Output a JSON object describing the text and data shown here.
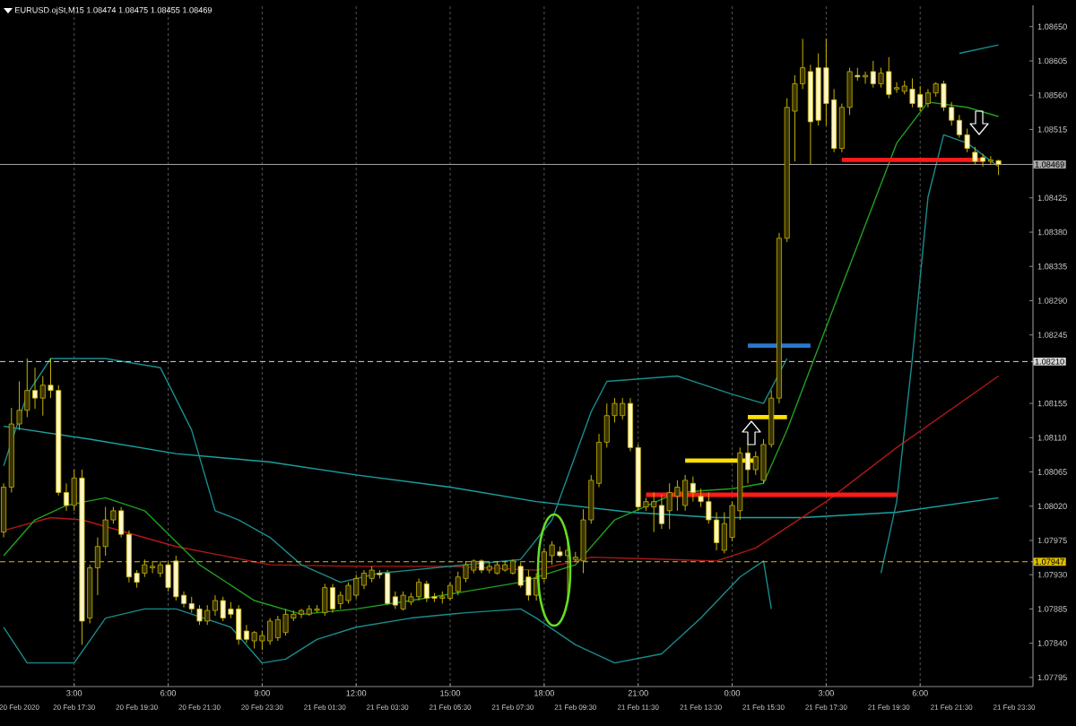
{
  "chart_data": {
    "type": "candlestick",
    "title": "EURUSD.ojSt,M15  1.08474 1.08475 1.08455 1.08469",
    "color": "#c8b400",
    "x": [
      "2020-02-20T15:15",
      "2020-02-20T15:30",
      "2020-02-20T15:45",
      "2020-02-20T16:00",
      "2020-02-20T16:15",
      "2020-02-20T16:30",
      "2020-02-20T16:45",
      "2020-02-20T17:00",
      "2020-02-20T17:15",
      "2020-02-20T17:30",
      "2020-02-20T17:45",
      "2020-02-20T18:00",
      "2020-02-20T18:15",
      "2020-02-20T18:30",
      "2020-02-20T18:45",
      "2020-02-20T19:00",
      "2020-02-20T19:15",
      "2020-02-20T19:30",
      "2020-02-20T19:45",
      "2020-02-20T20:00",
      "2020-02-20T20:15",
      "2020-02-20T20:30",
      "2020-02-20T20:45",
      "2020-02-20T21:00",
      "2020-02-20T21:15",
      "2020-02-20T21:30",
      "2020-02-20T21:45",
      "2020-02-20T22:00",
      "2020-02-20T22:15",
      "2020-02-20T22:30",
      "2020-02-20T22:45",
      "2020-02-20T23:00",
      "2020-02-20T23:15",
      "2020-02-20T23:30",
      "2020-02-20T23:45",
      "2020-02-21T00:00",
      "2020-02-21T00:15",
      "2020-02-21T00:30",
      "2020-02-21T00:45",
      "2020-02-21T01:00",
      "2020-02-21T01:15",
      "2020-02-21T01:30",
      "2020-02-21T01:45",
      "2020-02-21T02:00",
      "2020-02-21T02:15",
      "2020-02-21T02:30",
      "2020-02-21T02:45",
      "2020-02-21T03:00",
      "2020-02-21T03:15",
      "2020-02-21T03:30",
      "2020-02-21T03:45",
      "2020-02-21T04:00",
      "2020-02-21T04:15",
      "2020-02-21T04:30",
      "2020-02-21T04:45",
      "2020-02-21T05:00",
      "2020-02-21T05:15",
      "2020-02-21T05:30",
      "2020-02-21T05:45",
      "2020-02-21T06:00",
      "2020-02-21T06:15",
      "2020-02-21T06:30",
      "2020-02-21T06:45",
      "2020-02-21T07:00",
      "2020-02-21T07:15",
      "2020-02-21T07:30",
      "2020-02-21T07:45",
      "2020-02-21T08:00",
      "2020-02-21T08:15",
      "2020-02-21T08:30",
      "2020-02-21T08:45",
      "2020-02-21T09:00",
      "2020-02-21T09:15",
      "2020-02-21T09:30",
      "2020-02-21T09:45",
      "2020-02-21T10:00",
      "2020-02-21T10:15",
      "2020-02-21T10:30",
      "2020-02-21T10:45",
      "2020-02-21T11:00",
      "2020-02-21T11:15",
      "2020-02-21T11:30",
      "2020-02-21T11:45",
      "2020-02-21T12:00",
      "2020-02-21T12:15",
      "2020-02-21T12:30",
      "2020-02-21T12:45",
      "2020-02-21T13:00",
      "2020-02-21T13:15",
      "2020-02-21T13:30",
      "2020-02-21T13:45",
      "2020-02-21T14:00",
      "2020-02-21T14:15",
      "2020-02-21T14:30",
      "2020-02-21T14:45",
      "2020-02-21T15:00",
      "2020-02-21T15:15",
      "2020-02-21T15:30",
      "2020-02-21T15:45",
      "2020-02-21T16:00",
      "2020-02-21T16:15",
      "2020-02-21T16:30",
      "2020-02-21T16:45",
      "2020-02-21T17:00",
      "2020-02-21T17:15",
      "2020-02-21T17:30",
      "2020-02-21T17:45",
      "2020-02-21T18:00",
      "2020-02-21T18:15",
      "2020-02-21T18:30",
      "2020-02-21T18:45",
      "2020-02-21T19:00",
      "2020-02-21T19:15",
      "2020-02-21T19:30",
      "2020-02-21T19:45",
      "2020-02-21T20:00",
      "2020-02-21T20:15",
      "2020-02-21T20:30",
      "2020-02-21T20:45",
      "2020-02-21T21:00",
      "2020-02-21T21:15",
      "2020-02-21T21:30",
      "2020-02-21T21:45",
      "2020-02-21T22:00",
      "2020-02-21T22:15",
      "2020-02-21T22:30",
      "2020-02-21T22:45",
      "2020-02-21T23:00"
    ],
    "ohlc": [
      [
        1.07986,
        1.0805,
        1.07979,
        1.08045
      ],
      [
        1.08045,
        1.08149,
        1.08038,
        1.08128
      ],
      [
        1.08128,
        1.08184,
        1.0812,
        1.08146
      ],
      [
        1.08146,
        1.08214,
        1.08137,
        1.08172
      ],
      [
        1.08172,
        1.08202,
        1.08148,
        1.08162
      ],
      [
        1.08162,
        1.08191,
        1.08139,
        1.08179
      ],
      [
        1.08179,
        1.08214,
        1.08162,
        1.08172
      ],
      [
        1.08172,
        1.08179,
        1.08034,
        1.08038
      ],
      [
        1.08038,
        1.0805,
        1.08014,
        1.08021
      ],
      [
        1.08021,
        1.08068,
        1.08014,
        1.08057
      ],
      [
        1.08057,
        1.08068,
        1.07838,
        1.07869
      ],
      [
        1.07873,
        1.07943,
        1.07866,
        1.07939
      ],
      [
        1.07939,
        1.07979,
        1.07903,
        1.07967
      ],
      [
        1.07967,
        1.08019,
        1.07955,
        1.08002
      ],
      [
        1.08002,
        1.08019,
        1.07997,
        1.08014
      ],
      [
        1.08014,
        1.08019,
        1.07979,
        1.07983
      ],
      [
        1.07983,
        1.07988,
        1.0792,
        1.07927
      ],
      [
        1.07932,
        1.07936,
        1.07913,
        1.0792
      ],
      [
        1.07932,
        1.0795,
        1.07927,
        1.07943
      ],
      [
        1.07939,
        1.07948,
        1.07932,
        1.07941
      ],
      [
        1.07932,
        1.07948,
        1.07927,
        1.07943
      ],
      [
        1.07943,
        1.07948,
        1.07908,
        1.07913
      ],
      [
        1.07948,
        1.07955,
        1.07896,
        1.07901
      ],
      [
        1.07903,
        1.07908,
        1.07887,
        1.07892
      ],
      [
        1.07892,
        1.07901,
        1.0788,
        1.07885
      ],
      [
        1.07885,
        1.0789,
        1.07864,
        1.07869
      ],
      [
        1.07869,
        1.0789,
        1.07864,
        1.07883
      ],
      [
        1.07883,
        1.07903,
        1.07876,
        1.07896
      ],
      [
        1.07896,
        1.07901,
        1.07869,
        1.07873
      ],
      [
        1.07885,
        1.07894,
        1.07873,
        1.07878
      ],
      [
        1.07885,
        1.0789,
        1.07838,
        1.07845
      ],
      [
        1.07856,
        1.07864,
        1.0784,
        1.07845
      ],
      [
        1.07843,
        1.07856,
        1.07833,
        1.07854
      ],
      [
        1.07843,
        1.07856,
        1.07831,
        1.0785
      ],
      [
        1.07843,
        1.07873,
        1.07838,
        1.07869
      ],
      [
        1.07847,
        1.07876,
        1.07843,
        1.07871
      ],
      [
        1.07854,
        1.07885,
        1.0785,
        1.07878
      ],
      [
        1.07873,
        1.07883,
        1.07869,
        1.07878
      ],
      [
        1.07878,
        1.07885,
        1.07873,
        1.07883
      ],
      [
        1.07878,
        1.0789,
        1.07876,
        1.07885
      ],
      [
        1.07883,
        1.0789,
        1.0788,
        1.07885
      ],
      [
        1.0788,
        1.07918,
        1.07876,
        1.07913
      ],
      [
        1.07913,
        1.07918,
        1.0788,
        1.07885
      ],
      [
        1.07892,
        1.07908,
        1.07885,
        1.07903
      ],
      [
        1.07896,
        1.0792,
        1.07892,
        1.07916
      ],
      [
        1.07903,
        1.0793,
        1.07899,
        1.07925
      ],
      [
        1.07916,
        1.07936,
        1.07911,
        1.07932
      ],
      [
        1.07925,
        1.07941,
        1.0792,
        1.07936
      ],
      [
        1.07932,
        1.07936,
        1.07925,
        1.0793
      ],
      [
        1.07932,
        1.07936,
        1.0789,
        1.07892
      ],
      [
        1.07901,
        1.07908,
        1.07885,
        1.0789
      ],
      [
        1.07885,
        1.07908,
        1.07883,
        1.07903
      ],
      [
        1.07894,
        1.07906,
        1.0789,
        1.07901
      ],
      [
        1.07901,
        1.07925,
        1.07896,
        1.0792
      ],
      [
        1.07918,
        1.07922,
        1.07894,
        1.07899
      ],
      [
        1.07901,
        1.07906,
        1.07894,
        1.07899
      ],
      [
        1.07899,
        1.07908,
        1.07892,
        1.07901
      ],
      [
        1.07899,
        1.0792,
        1.07896,
        1.07916
      ],
      [
        1.07908,
        1.07934,
        1.07903,
        1.07927
      ],
      [
        1.07925,
        1.07948,
        1.0792,
        1.07943
      ],
      [
        1.07936,
        1.0795,
        1.07932,
        1.07948
      ],
      [
        1.07948,
        1.0795,
        1.07932,
        1.07936
      ],
      [
        1.07936,
        1.07946,
        1.07932,
        1.07941
      ],
      [
        1.07932,
        1.07948,
        1.0793,
        1.07943
      ],
      [
        1.07936,
        1.07948,
        1.07934,
        1.07943
      ],
      [
        1.07932,
        1.0795,
        1.0793,
        1.07948
      ],
      [
        1.07941,
        1.07946,
        1.07913,
        1.07916
      ],
      [
        1.07927,
        1.07936,
        1.07896,
        1.07903
      ],
      [
        1.07903,
        1.07932,
        1.07896,
        1.07925
      ],
      [
        1.07925,
        1.07965,
        1.0792,
        1.0796
      ],
      [
        1.07955,
        1.07974,
        1.07943,
        1.07969
      ],
      [
        1.0796,
        1.07967,
        1.07953,
        1.07955
      ],
      [
        1.07955,
        1.07972,
        1.07896,
        1.07962
      ],
      [
        1.0795,
        1.0796,
        1.07948,
        1.07953
      ],
      [
        1.07948,
        1.08016,
        1.07932,
        1.08002
      ],
      [
        1.08002,
        1.08061,
        1.07997,
        1.08054
      ],
      [
        1.0805,
        1.08115,
        1.08045,
        1.08104
      ],
      [
        1.08104,
        1.08155,
        1.08097,
        1.08139
      ],
      [
        1.08139,
        1.08162,
        1.0813,
        1.08155
      ],
      [
        1.08139,
        1.08162,
        1.08134,
        1.08155
      ],
      [
        1.08155,
        1.08162,
        1.08092,
        1.08097
      ],
      [
        1.08097,
        1.08101,
        1.08014,
        1.08019
      ],
      [
        1.08019,
        1.08031,
        1.08014,
        1.08026
      ],
      [
        1.08019,
        1.08038,
        1.07986,
        1.08026
      ],
      [
        1.08021,
        1.08035,
        1.0799,
        1.07997
      ],
      [
        1.08014,
        1.0805,
        1.0799,
        1.08038
      ],
      [
        1.08033,
        1.08054,
        1.08014,
        1.08045
      ],
      [
        1.08021,
        1.08061,
        1.08014,
        1.08054
      ],
      [
        1.0805,
        1.08059,
        1.08026,
        1.08038
      ],
      [
        1.08033,
        1.08043,
        1.08019,
        1.08026
      ],
      [
        1.08026,
        1.08038,
        1.07997,
        1.08002
      ],
      [
        1.08002,
        1.08012,
        1.07962,
        1.07972
      ],
      [
        1.07962,
        1.08012,
        1.07958,
        1.07997
      ],
      [
        1.07979,
        1.08026,
        1.07974,
        1.08021
      ],
      [
        1.08014,
        1.08097,
        1.08002,
        1.0809
      ],
      [
        1.0809,
        1.08101,
        1.0805,
        1.08068
      ],
      [
        1.08068,
        1.08092,
        1.08061,
        1.08085
      ],
      [
        1.08054,
        1.08108,
        1.0805,
        1.08101
      ],
      [
        1.08101,
        1.08172,
        1.08097,
        1.08162
      ],
      [
        1.08162,
        1.08379,
        1.08155,
        1.08372
      ],
      [
        1.08372,
        1.08556,
        1.08367,
        1.08544
      ],
      [
        1.08539,
        1.08586,
        1.08473,
        1.08575
      ],
      [
        1.08575,
        1.08634,
        1.08568,
        1.08596
      ],
      [
        1.08591,
        1.086,
        1.08469,
        1.08525
      ],
      [
        1.08596,
        1.08615,
        1.0852,
        1.08527
      ],
      [
        1.08596,
        1.08634,
        1.0852,
        1.08549
      ],
      [
        1.08554,
        1.08568,
        1.08485,
        1.0849
      ],
      [
        1.0849,
        1.08549,
        1.08485,
        1.08544
      ],
      [
        1.08544,
        1.08596,
        1.08534,
        1.08591
      ],
      [
        1.08586,
        1.08596,
        1.08579,
        1.08584
      ],
      [
        1.08584,
        1.08591,
        1.08575,
        1.08586
      ],
      [
        1.08591,
        1.08605,
        1.0857,
        1.08575
      ],
      [
        1.08575,
        1.08596,
        1.0857,
        1.08589
      ],
      [
        1.08591,
        1.0861,
        1.08556,
        1.08561
      ],
      [
        1.08568,
        1.08577,
        1.08563,
        1.0857
      ],
      [
        1.08565,
        1.08579,
        1.08561,
        1.08572
      ],
      [
        1.08568,
        1.08582,
        1.08544,
        1.08549
      ],
      [
        1.08561,
        1.08572,
        1.08539,
        1.08544
      ],
      [
        1.08549,
        1.08568,
        1.08544,
        1.08563
      ],
      [
        1.08563,
        1.08577,
        1.08558,
        1.08575
      ],
      [
        1.08575,
        1.08579,
        1.08539,
        1.08544
      ],
      [
        1.08544,
        1.08551,
        1.0852,
        1.08527
      ],
      [
        1.08527,
        1.08534,
        1.08504,
        1.08508
      ],
      [
        1.08508,
        1.08516,
        1.08485,
        1.0849
      ],
      [
        1.08485,
        1.08492,
        1.08469,
        1.08473
      ],
      [
        1.08478,
        1.08483,
        1.08466,
        1.08473
      ],
      [
        1.08473,
        1.0848,
        1.08469,
        1.08475
      ],
      [
        1.08474,
        1.08475,
        1.08455,
        1.08469
      ]
    ],
    "series": [
      {
        "type": "line",
        "color": "#1aa3a3",
        "x": [
          "2020-02-20T15:15",
          "2020-02-20T18:00",
          "2020-02-20T20:45",
          "2020-02-20T23:45",
          "2020-02-21T02:30",
          "2020-02-21T05:30",
          "2020-02-21T08:15",
          "2020-02-21T11:15",
          "2020-02-21T14:00",
          "2020-02-21T16:45",
          "2020-02-21T19:45",
          "2020-02-21T23:00"
        ],
        "values": [
          1.08125,
          1.08108,
          1.08089,
          1.08078,
          1.08061,
          1.08045,
          1.08026,
          1.08012,
          1.08005,
          1.08005,
          1.08012,
          1.08031
        ]
      },
      {
        "type": "line",
        "color": "#b01818",
        "x": [
          "2020-02-20T15:15",
          "2020-02-20T16:45",
          "2020-02-20T17:45",
          "2020-02-20T20:45",
          "2020-02-20T23:45",
          "2020-02-21T02:30",
          "2020-02-21T05:30",
          "2020-02-21T08:15",
          "2020-02-21T10:00",
          "2020-02-21T14:00",
          "2020-02-21T15:15",
          "2020-02-21T17:30",
          "2020-02-21T19:45",
          "2020-02-21T23:00"
        ],
        "values": [
          1.07988,
          1.08005,
          1.08002,
          1.07967,
          1.07943,
          1.07941,
          1.07941,
          1.07936,
          1.07953,
          1.07948,
          1.07965,
          1.08026,
          1.08097,
          1.08191
        ]
      },
      {
        "type": "line",
        "color": "#20a020",
        "x": [
          "2020-02-20T15:15",
          "2020-02-20T16:15",
          "2020-02-20T17:15",
          "2020-02-20T18:30",
          "2020-02-20T19:45",
          "2020-02-20T21:30",
          "2020-02-20T23:15",
          "2020-02-21T00:45",
          "2020-02-21T02:30",
          "2020-02-21T04:15",
          "2020-02-21T06:00",
          "2020-02-21T07:45",
          "2020-02-21T09:30",
          "2020-02-21T10:45",
          "2020-02-21T12:45",
          "2020-02-21T14:30",
          "2020-02-21T15:30",
          "2020-02-21T16:15",
          "2020-02-21T18:00",
          "2020-02-21T19:45",
          "2020-02-21T20:45",
          "2020-02-21T22:00",
          "2020-02-21T23:00"
        ],
        "values": [
          1.07955,
          1.08002,
          1.08021,
          1.08031,
          1.08014,
          1.07943,
          1.07896,
          1.07878,
          1.07885,
          1.07896,
          1.07908,
          1.0792,
          1.07943,
          1.08002,
          1.08038,
          1.08043,
          1.0805,
          1.0812,
          1.08309,
          1.08497,
          1.08551,
          1.08544,
          1.08532
        ]
      },
      {
        "type": "line",
        "color": "#1a8c8c",
        "x": [
          "2020-02-20T15:15",
          "2020-02-20T16:00",
          "2020-02-20T16:45",
          "2020-02-20T18:30",
          "2020-02-20T20:15",
          "2020-02-20T21:15",
          "2020-02-20T22:00",
          "2020-02-20T22:45",
          "2020-02-20T23:45",
          "2020-02-21T00:45",
          "2020-02-21T02:00",
          "2020-02-21T03:15",
          "2020-02-21T04:15",
          "2020-02-21T06:00",
          "2020-02-21T07:45",
          "2020-02-21T08:45",
          "2020-02-21T10:00",
          "2020-02-21T10:30",
          "2020-02-21T12:45",
          "2020-02-21T14:30",
          "2020-02-21T15:30",
          "2020-02-21T16:15",
          "2020-02-21T17:30",
          "2020-02-21T18:30",
          "2020-02-21T20:45",
          "2020-02-21T21:45",
          "2020-02-21T23:00"
        ],
        "values": [
          1.08073,
          1.08167,
          1.08214,
          1.08214,
          1.08202,
          1.0812,
          1.08014,
          1.08002,
          1.07979,
          1.07943,
          1.0792,
          1.07932,
          1.07936,
          1.07943,
          1.0795,
          1.08002,
          1.08144,
          1.08184,
          1.08191,
          1.08167,
          1.08155,
          1.08214,
          null,
          null,
          null,
          1.08615,
          1.08626
        ]
      },
      {
        "type": "line",
        "color": "#1a8c8c",
        "x": [
          "2020-02-20T15:15",
          "2020-02-20T16:00",
          "2020-02-20T17:30",
          "2020-02-20T18:30",
          "2020-02-20T19:45",
          "2020-02-20T20:45",
          "2020-02-20T22:30",
          "2020-02-20T23:30",
          "2020-02-21T00:15",
          "2020-02-21T01:15",
          "2020-02-21T02:30",
          "2020-02-21T04:15",
          "2020-02-21T06:00",
          "2020-02-21T07:45",
          "2020-02-21T08:15",
          "2020-02-21T09:30",
          "2020-02-21T10:45",
          "2020-02-21T12:15",
          "2020-02-21T13:30",
          "2020-02-21T14:45",
          "2020-02-21T15:30",
          "2020-02-21T15:45",
          "2020-02-21T16:15",
          "2020-02-21T17:45",
          "2020-02-21T18:30",
          "2020-02-21T19:15",
          "2020-02-21T19:45",
          "2020-02-21T20:15",
          "2020-02-21T20:45",
          "2020-02-21T21:15",
          "2020-02-21T22:00",
          "2020-02-21T23:00"
        ],
        "values": [
          1.07861,
          1.07814,
          1.07814,
          1.07873,
          1.07885,
          1.07885,
          1.07861,
          1.07814,
          1.07819,
          1.07845,
          1.07861,
          1.07873,
          1.0788,
          1.07885,
          1.07873,
          1.07838,
          1.07814,
          1.07826,
          1.07873,
          1.07927,
          1.07948,
          1.07885,
          null,
          null,
          null,
          1.07932,
          1.08026,
          1.08214,
          1.08426,
          1.08508,
          1.08497,
          1.08466
        ]
      },
      {
        "type": "line",
        "color": "#ff1a1a",
        "x": [
          "2020-02-21T11:45",
          "2020-02-21T19:45"
        ],
        "values": [
          1.08035,
          1.08035
        ]
      },
      {
        "type": "line",
        "color": "#ff1a1a",
        "x": [
          "2020-02-21T18:00",
          "2020-02-21T22:30"
        ],
        "values": [
          1.08475,
          1.08475
        ]
      },
      {
        "type": "line",
        "color": "#2878d0",
        "x": [
          "2020-02-21T15:00",
          "2020-02-21T17:00"
        ],
        "values": [
          1.08231,
          1.08231
        ]
      },
      {
        "type": "line",
        "color": "#ffe000",
        "x": [
          "2020-02-21T13:00",
          "2020-02-21T15:15"
        ],
        "values": [
          1.0808,
          1.0808
        ]
      },
      {
        "type": "line",
        "color": "#ffe000",
        "x": [
          "2020-02-21T15:00",
          "2020-02-21T16:15"
        ],
        "values": [
          1.08137,
          1.08137
        ]
      }
    ],
    "xlim": [
      "2020-02-20T15:08",
      "2020-02-22T00:06"
    ],
    "xticks": [
      {
        "value": "2020-02-20T17:30",
        "label": "3:00"
      },
      {
        "value": "2020-02-20T20:30",
        "label": "6:00"
      },
      {
        "value": "2020-02-20T23:30",
        "label": "9:00"
      },
      {
        "value": "2020-02-21T02:30",
        "label": "12:00"
      },
      {
        "value": "2020-02-21T05:30",
        "label": "15:00"
      },
      {
        "value": "2020-02-21T08:30",
        "label": "18:00"
      },
      {
        "value": "2020-02-21T11:30",
        "label": "21:00"
      },
      {
        "value": "2020-02-21T14:30",
        "label": "0:00"
      },
      {
        "value": "2020-02-21T17:30",
        "label": "3:00"
      },
      {
        "value": "2020-02-21T20:30",
        "label": "6:00"
      }
    ],
    "x2lim": [
      "2020-02-20T15:08",
      "2020-02-22T00:06"
    ],
    "x2ticks": [
      {
        "value": "2020-02-20T15:45",
        "label": "20 Feb 2020"
      },
      {
        "value": "2020-02-20T17:30",
        "label": "20 Feb 17:30"
      },
      {
        "value": "2020-02-20T19:30",
        "label": "20 Feb 19:30"
      },
      {
        "value": "2020-02-20T21:30",
        "label": "20 Feb 21:30"
      },
      {
        "value": "2020-02-20T23:30",
        "label": "20 Feb 23:30"
      },
      {
        "value": "2020-02-21T01:30",
        "label": "21 Feb 01:30"
      },
      {
        "value": "2020-02-21T03:30",
        "label": "21 Feb 03:30"
      },
      {
        "value": "2020-02-21T05:30",
        "label": "21 Feb 05:30"
      },
      {
        "value": "2020-02-21T07:30",
        "label": "21 Feb 07:30"
      },
      {
        "value": "2020-02-21T09:30",
        "label": "21 Feb 09:30"
      },
      {
        "value": "2020-02-21T11:30",
        "label": "21 Feb 11:30"
      },
      {
        "value": "2020-02-21T13:30",
        "label": "21 Feb 13:30"
      },
      {
        "value": "2020-02-21T15:30",
        "label": "21 Feb 15:30"
      },
      {
        "value": "2020-02-21T17:30",
        "label": "21 Feb 17:30"
      },
      {
        "value": "2020-02-21T19:30",
        "label": "21 Feb 19:30"
      },
      {
        "value": "2020-02-21T21:30",
        "label": "21 Feb 21:30"
      },
      {
        "value": "2020-02-21T23:30",
        "label": "21 Feb 23:30"
      }
    ],
    "ylim": [
      1.07783,
      1.08678
    ],
    "yticks": [
      {
        "value": 1.07795,
        "label": "1.07795"
      },
      {
        "value": 1.0784,
        "label": "1.07840"
      },
      {
        "value": 1.07885,
        "label": "1.07885"
      },
      {
        "value": 1.0793,
        "label": "1.07930"
      },
      {
        "value": 1.07975,
        "label": "1.07975"
      },
      {
        "value": 1.0802,
        "label": "1.08020"
      },
      {
        "value": 1.08065,
        "label": "1.08065"
      },
      {
        "value": 1.0811,
        "label": "1.08110"
      },
      {
        "value": 1.08155,
        "label": "1.08155"
      },
      {
        "value": 1.08245,
        "label": "1.08245"
      },
      {
        "value": 1.0829,
        "label": "1.08290"
      },
      {
        "value": 1.08335,
        "label": "1.08335"
      },
      {
        "value": 1.0838,
        "label": "1.08380"
      },
      {
        "value": 1.08425,
        "label": "1.08425"
      },
      {
        "value": 1.08515,
        "label": "1.08515"
      },
      {
        "value": 1.0856,
        "label": "1.08560"
      },
      {
        "value": 1.08605,
        "label": "1.08605"
      },
      {
        "value": 1.0865,
        "label": "1.08650"
      }
    ],
    "ref_lines": [
      {
        "axis": "y",
        "value": 1.08469,
        "label": "1.08469",
        "color": "#a8a8a8",
        "line_style": "solid"
      },
      {
        "axis": "y",
        "value": 1.0821,
        "label": "1.08210",
        "color": "#d8d8d8",
        "line_style": "dashed"
      },
      {
        "axis": "y",
        "value": 1.07947,
        "label": "1.07947",
        "color": "#e0c000",
        "line_style": "dashed"
      }
    ],
    "grid": "x"
  }
}
